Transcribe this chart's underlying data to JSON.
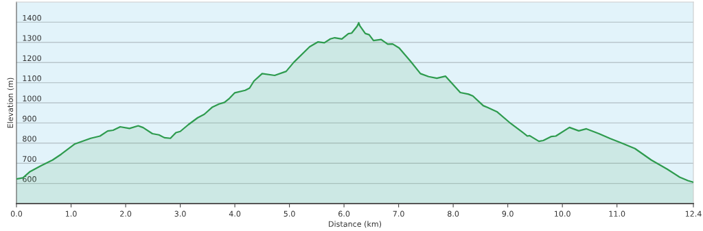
{
  "chart_data": {
    "type": "area",
    "xlabel": "Distance (km)",
    "ylabel": "Elevation (m)",
    "xlim": [
      0,
      12.4
    ],
    "ylim": [
      500,
      1500
    ],
    "xticks": [
      {
        "value": 0,
        "label": "0.0"
      },
      {
        "value": 1,
        "label": "1.0"
      },
      {
        "value": 2,
        "label": "2.0"
      },
      {
        "value": 3,
        "label": "3.0"
      },
      {
        "value": 4,
        "label": "4.0"
      },
      {
        "value": 5,
        "label": "5.0"
      },
      {
        "value": 6,
        "label": "6.0"
      },
      {
        "value": 7,
        "label": "7.0"
      },
      {
        "value": 8,
        "label": "8.0"
      },
      {
        "value": 9,
        "label": "9.0"
      },
      {
        "value": 10,
        "label": "10.0"
      },
      {
        "value": 11,
        "label": "11.0"
      },
      {
        "value": 12.4,
        "label": "12.4"
      }
    ],
    "yticks": [
      600,
      700,
      800,
      900,
      1000,
      1100,
      1200,
      1300,
      1400
    ],
    "grid": "y",
    "legend": false,
    "series": [
      {
        "color": "#2e9b4e",
        "x": [
          0.0,
          0.12,
          0.24,
          0.45,
          0.66,
          0.82,
          1.07,
          1.36,
          1.53,
          1.67,
          1.77,
          1.9,
          2.07,
          2.23,
          2.32,
          2.49,
          2.61,
          2.71,
          2.82,
          2.92,
          3.0,
          3.15,
          3.32,
          3.44,
          3.59,
          3.71,
          3.81,
          3.9,
          4.0,
          4.19,
          4.27,
          4.35,
          4.5,
          4.73,
          4.94,
          5.08,
          5.37,
          5.52,
          5.64,
          5.75,
          5.83,
          5.96,
          6.08,
          6.14,
          6.24,
          6.27,
          6.29,
          6.39,
          6.46,
          6.54,
          6.68,
          6.8,
          6.89,
          7.01,
          7.22,
          7.4,
          7.55,
          7.7,
          7.86,
          8.13,
          8.28,
          8.36,
          8.55,
          8.63,
          8.8,
          9.03,
          9.24,
          9.36,
          9.4,
          9.57,
          9.65,
          9.8,
          9.88,
          10.13,
          10.3,
          10.44,
          10.67,
          10.88,
          11.08,
          11.33,
          11.63,
          11.92,
          12.15,
          12.3,
          12.4
        ],
        "values": [
          622,
          628,
          657,
          688,
          716,
          745,
          796,
          824,
          835,
          860,
          864,
          881,
          873,
          886,
          877,
          847,
          841,
          827,
          824,
          852,
          858,
          892,
          926,
          943,
          979,
          994,
          1002,
          1022,
          1050,
          1062,
          1073,
          1108,
          1145,
          1136,
          1156,
          1201,
          1278,
          1302,
          1298,
          1317,
          1323,
          1317,
          1343,
          1346,
          1380,
          1397,
          1382,
          1344,
          1338,
          1309,
          1314,
          1291,
          1292,
          1272,
          1206,
          1145,
          1130,
          1122,
          1132,
          1051,
          1043,
          1034,
          986,
          977,
          956,
          903,
          860,
          835,
          837,
          809,
          813,
          833,
          835,
          878,
          861,
          871,
          847,
          822,
          801,
          773,
          716,
          671,
          631,
          614,
          606
        ]
      }
    ]
  }
}
